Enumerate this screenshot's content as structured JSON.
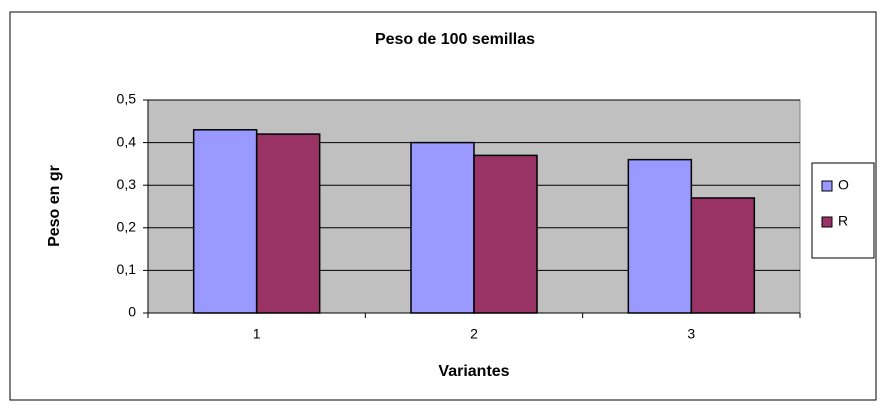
{
  "chart_data": {
    "type": "bar",
    "title": "Peso de 100 semillas",
    "x_label": "Variantes",
    "y_label": "Peso en gr",
    "categories": [
      "1",
      "2",
      "3"
    ],
    "series": [
      {
        "name": "O",
        "color": "#9999ff",
        "values": [
          0.43,
          0.4,
          0.36
        ]
      },
      {
        "name": "R",
        "color": "#993366",
        "values": [
          0.42,
          0.37,
          0.27
        ]
      }
    ],
    "ylim": [
      0,
      0.5
    ],
    "yticks": [
      0,
      {
        "value": 0.1,
        "label": "0,1"
      },
      {
        "value": 0.2,
        "label": "0,2"
      },
      {
        "value": 0.3,
        "label": "0,3"
      },
      {
        "value": 0.4,
        "label": "0,4"
      },
      {
        "value": 0.5,
        "label": "0,5"
      }
    ],
    "grid": true,
    "legend": "right"
  }
}
